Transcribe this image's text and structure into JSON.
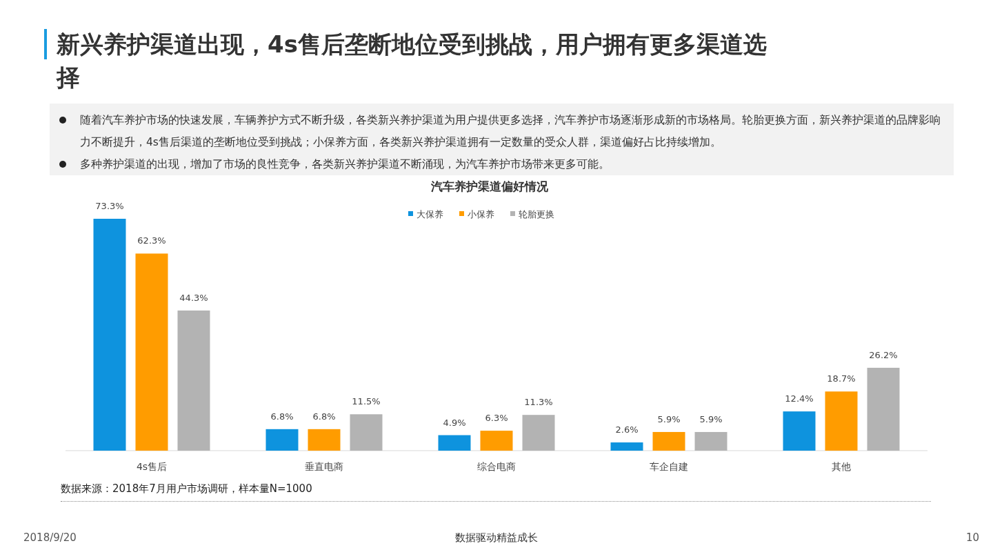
{
  "chart_data": {
    "type": "bar",
    "title": "新兴养护渠道出现，4s售后垄断地位受到挑战，用户拥有更多渠道选择",
    "subtitle": "汽车养护渠道偏好情况",
    "categories": [
      "4s售后",
      "垂直电商",
      "综合电商",
      "车企自建",
      "其他"
    ],
    "series": [
      {
        "name": "大保养",
        "color": "#0e93de",
        "values": [
          73.3,
          6.8,
          4.9,
          2.6,
          12.4
        ],
        "value_labels": [
          "73.3%",
          "6.8%",
          "4.9%",
          "2.6%",
          "12.4%"
        ]
      },
      {
        "name": "小保养",
        "color": "#ff9c00",
        "values": [
          62.3,
          6.8,
          6.3,
          5.9,
          18.7
        ],
        "value_labels": [
          "62.3%",
          "6.8%",
          "6.3%",
          "5.9%",
          "18.7%"
        ]
      },
      {
        "name": "轮胎更换",
        "color": "#b3b3b3",
        "values": [
          44.3,
          11.5,
          11.3,
          5.9,
          26.2
        ],
        "value_labels": [
          "44.3%",
          "11.5%",
          "11.3%",
          "5.9%",
          "26.2%"
        ]
      }
    ],
    "legend": "top",
    "annotations": [
      "随着汽车养护市场的快速发展，车辆养护方式不断升级，各类新兴养护渠道为用户提供更多选择，汽车养护市场逐渐形成新的市场格局。轮胎更换方面，新兴养护渠道的品牌影响力不断提升，4s售后渠道的垄断地位受到挑战；小保养方面，各类新兴养护渠道拥有一定数量的受众人群，渠道偏好占比持续增加。",
      "多种养护渠道的出现，增加了市场的良性竞争，各类新兴养护渠道不断涌现，为汽车养护市场带来更多可能。",
      "数据来源：2018年7月用户市场调研，样本量N=1000",
      "2018/9/20",
      "数据驱动精益成长",
      "10"
    ]
  }
}
